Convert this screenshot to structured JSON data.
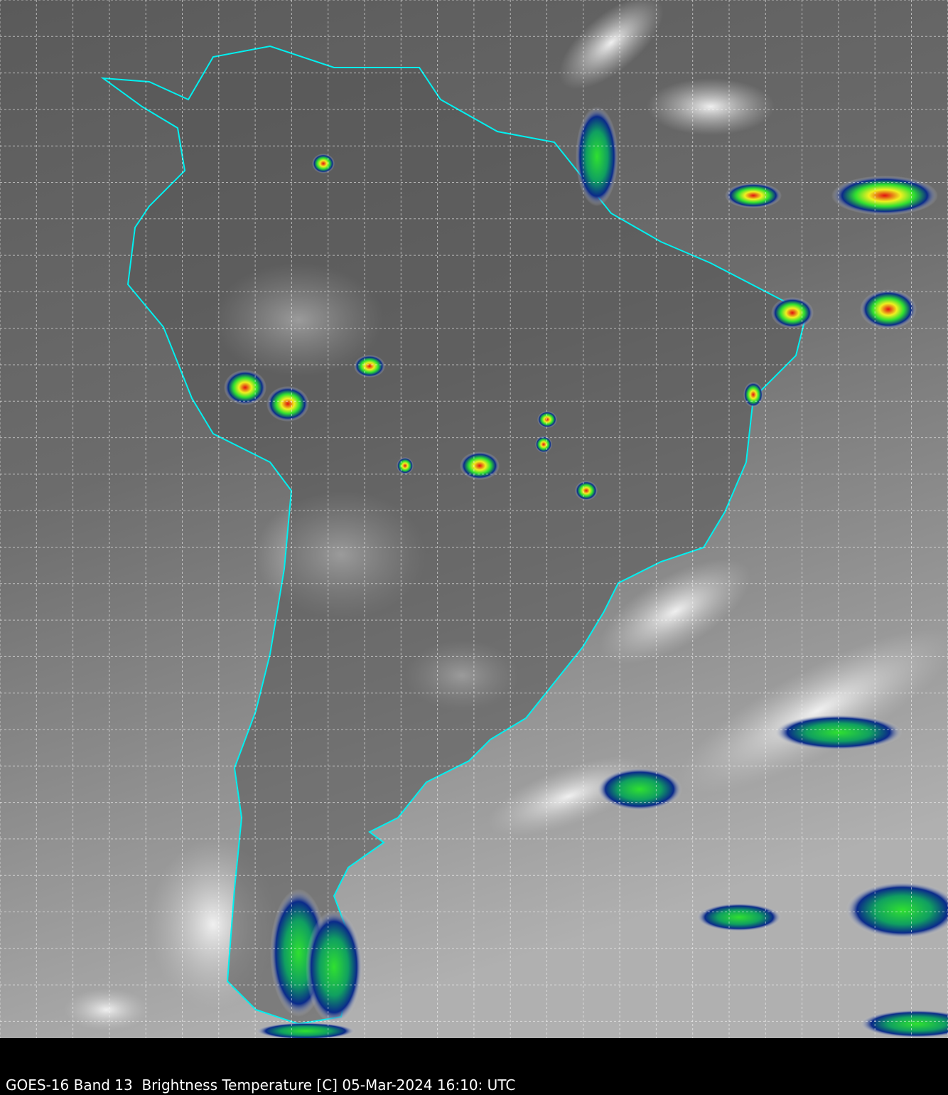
{
  "caption": "GOES-16 Band 13  Brightness Temperature [C] 05-Mar-2024 16:10: UTC",
  "colors": {
    "border": "#00f0f0",
    "grid": "#ffffff",
    "background_dark": "#404040",
    "background_light": "#b4b4b4",
    "cold_cloud_blue": "#0a2a8a",
    "cold_cloud_green": "#30e030",
    "cold_cloud_yellow": "#f0f020",
    "cold_cloud_red": "#e01010"
  },
  "map": {
    "grid": true,
    "grid_style": "dashed",
    "region": "South America",
    "icons": []
  }
}
